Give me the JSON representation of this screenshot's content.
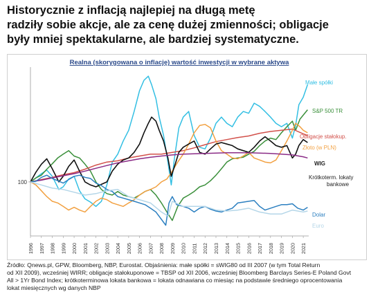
{
  "headline": {
    "line1": "Historycznie z inflacją najlepiej na długą metę",
    "line2": "radziły sobie akcje, ale za cenę dużej zmienności; obligacje",
    "line3": "były mniej spektakularne, ale bardziej systematyczne."
  },
  "footnote": {
    "line1": "Źródło: Qnews.pl, GPW, Bloomberg, NBP, Eurostat. Objaśnienia: małe spółki = sWIG80 od III 2007 (w tym Total Return",
    "line2": "od XII 2009), wcześniej WIRR; obligacje stałokuponowe = TBSP od XII 2006, wcześniej Bloomberg Barclays Series-E Poland Govt",
    "line3": "All > 1Yr Bond Index; krótkoterminowa lokata bankowa = lokata odnawiana co miesiąc na podstawie średniego oprocentowania",
    "line4": "lokat miesięcznych wg danych NBP"
  },
  "chart_data": {
    "type": "line",
    "title": "Realna (skorygowana o inflację) wartość inwestycji w wybrane aktywa",
    "xlabel": "",
    "ylabel": "",
    "y_scale": "log",
    "y_ticks": [
      100
    ],
    "ylim": [
      40,
      700
    ],
    "xlim": [
      1996,
      2021.5
    ],
    "x_ticks": [
      "1996",
      "1997",
      "1998",
      "1999",
      "2000",
      "2001",
      "2002",
      "2003",
      "2004",
      "2005",
      "2006",
      "2007",
      "2008",
      "2009",
      "2010",
      "2011",
      "2012",
      "2013",
      "2014",
      "2015",
      "2016",
      "2017",
      "2018",
      "2019",
      "2020",
      "2021"
    ],
    "grid": false,
    "legend": "labels at line ends (right)",
    "series": [
      {
        "name": "Małe spółki",
        "color": "#33bfe3",
        "label_pos": [
          430,
          43
        ],
        "x": [
          1996,
          1996.5,
          1997,
          1997.5,
          1998,
          1998.6,
          1999,
          1999.5,
          2000,
          2000.5,
          2001,
          2001.5,
          2002,
          2002.5,
          2003,
          2003.5,
          2004,
          2004.5,
          2005,
          2005.5,
          2006,
          2006.4,
          2006.8,
          2007.1,
          2007.5,
          2007.8,
          2008.2,
          2008.6,
          2008.9,
          2009.2,
          2009.6,
          2010,
          2010.5,
          2011,
          2011.5,
          2012,
          2012.5,
          2013,
          2013.5,
          2014,
          2014.5,
          2015,
          2015.5,
          2016,
          2016.5,
          2017,
          2017.5,
          2018,
          2018.5,
          2019,
          2019.5,
          2020,
          2020.3,
          2020.6,
          2021,
          2021.4
        ],
        "y": [
          100,
          107,
          115,
          122,
          110,
          88,
          92,
          105,
          110,
          86,
          75,
          71,
          66,
          72,
          95,
          140,
          160,
          200,
          240,
          330,
          470,
          560,
          600,
          520,
          410,
          300,
          220,
          140,
          95,
          150,
          250,
          300,
          330,
          220,
          180,
          175,
          210,
          270,
          300,
          270,
          255,
          300,
          330,
          320,
          380,
          360,
          330,
          300,
          270,
          255,
          270,
          210,
          260,
          370,
          420,
          520
        ]
      },
      {
        "name": "S&P 500 TR",
        "color": "#3a8f3a",
        "label_pos": [
          440,
          84
        ],
        "x": [
          1996,
          1996.5,
          1997,
          1997.5,
          1998,
          1998.5,
          1999,
          1999.5,
          2000,
          2000.5,
          2001,
          2001.5,
          2002,
          2002.5,
          2003,
          2003.5,
          2004,
          2004.5,
          2005,
          2005.5,
          2006,
          2006.5,
          2007,
          2007.5,
          2008,
          2008.5,
          2009,
          2009.5,
          2010,
          2010.5,
          2011,
          2011.5,
          2012,
          2012.5,
          2013,
          2013.5,
          2014,
          2014.5,
          2015,
          2015.5,
          2016,
          2016.5,
          2017,
          2017.5,
          2018,
          2018.5,
          2019,
          2019.5,
          2020,
          2020.3,
          2020.7,
          2021,
          2021.4
        ],
        "y": [
          100,
          107,
          112,
          124,
          136,
          150,
          160,
          170,
          155,
          150,
          135,
          120,
          100,
          88,
          82,
          80,
          85,
          80,
          78,
          76,
          80,
          85,
          88,
          80,
          70,
          60,
          52,
          66,
          76,
          80,
          85,
          92,
          95,
          102,
          112,
          125,
          140,
          148,
          150,
          152,
          160,
          168,
          185,
          200,
          210,
          205,
          230,
          255,
          280,
          240,
          290,
          310,
          340
        ]
      },
      {
        "name": "Obligacje stałokup.",
        "color": "#d2504a",
        "label_pos": [
          422,
          121
        ],
        "x": [
          1996,
          1997,
          1998,
          1999,
          2000,
          2001,
          2002,
          2003,
          2004,
          2005,
          2006,
          2007,
          2008,
          2009,
          2010,
          2011,
          2012,
          2013,
          2014,
          2015,
          2016,
          2017,
          2018,
          2019,
          2020,
          2021,
          2021.4
        ],
        "y": [
          100,
          104,
          108,
          113,
          117,
          124,
          133,
          140,
          143,
          150,
          155,
          160,
          160,
          165,
          170,
          178,
          188,
          198,
          205,
          212,
          218,
          228,
          235,
          240,
          245,
          226,
          220
        ]
      },
      {
        "name": "Złoto (w PLN)",
        "color": "#f2a040",
        "label_pos": [
          426,
          137
        ],
        "x": [
          1996,
          1996.5,
          1997,
          1997.5,
          1998,
          1998.5,
          1999,
          1999.5,
          2000,
          2000.5,
          2001,
          2001.5,
          2002,
          2002.5,
          2003,
          2003.5,
          2004,
          2004.5,
          2005,
          2005.5,
          2006,
          2006.5,
          2007,
          2007.5,
          2008,
          2008.5,
          2009,
          2009.5,
          2010,
          2010.5,
          2011,
          2011.5,
          2012,
          2012.5,
          2013,
          2013.5,
          2014,
          2014.5,
          2015,
          2015.5,
          2016,
          2016.5,
          2017,
          2017.5,
          2018,
          2018.5,
          2019,
          2019.5,
          2020,
          2020.3,
          2020.7,
          2021,
          2021.4
        ],
        "y": [
          100,
          95,
          86,
          78,
          72,
          70,
          66,
          62,
          65,
          62,
          60,
          66,
          72,
          76,
          74,
          70,
          68,
          66,
          70,
          74,
          80,
          85,
          88,
          92,
          100,
          105,
          120,
          140,
          160,
          190,
          230,
          260,
          265,
          250,
          200,
          170,
          160,
          150,
          148,
          155,
          165,
          150,
          145,
          140,
          138,
          145,
          170,
          200,
          240,
          270,
          255,
          240,
          230
        ]
      },
      {
        "name": "WIG",
        "color": "#111111",
        "label_pos": [
          443,
          160
        ],
        "x": [
          1996,
          1996.5,
          1997,
          1997.5,
          1998,
          1998.6,
          1999,
          1999.5,
          2000,
          2000.5,
          2001,
          2001.5,
          2002,
          2002.5,
          2003,
          2003.5,
          2004,
          2004.5,
          2005,
          2005.5,
          2006,
          2006.4,
          2006.8,
          2007.1,
          2007.5,
          2007.8,
          2008.2,
          2008.6,
          2008.9,
          2009.2,
          2009.6,
          2010,
          2010.5,
          2011,
          2011.5,
          2012,
          2012.5,
          2013,
          2013.5,
          2014,
          2014.5,
          2015,
          2015.5,
          2016,
          2016.5,
          2017,
          2017.5,
          2018,
          2018.5,
          2019,
          2019.5,
          2020,
          2020.3,
          2020.6,
          2021,
          2021.4
        ],
        "y": [
          100,
          118,
          135,
          148,
          125,
          100,
          110,
          130,
          145,
          120,
          100,
          95,
          92,
          96,
          100,
          120,
          135,
          145,
          150,
          165,
          190,
          230,
          270,
          300,
          280,
          240,
          200,
          150,
          110,
          130,
          165,
          180,
          190,
          200,
          165,
          160,
          175,
          190,
          195,
          190,
          185,
          175,
          170,
          165,
          180,
          200,
          215,
          200,
          185,
          180,
          185,
          150,
          160,
          185,
          205,
          195
        ]
      },
      {
        "name": "Krótkoterm. lokaty bankowe",
        "color": "#8a2b86",
        "label_pos": [
          435,
          180
        ],
        "x": [
          1996,
          1997,
          1998,
          1999,
          2000,
          2001,
          2002,
          2003,
          2004,
          2005,
          2006,
          2007,
          2008,
          2009,
          2010,
          2011,
          2012,
          2013,
          2014,
          2015,
          2016,
          2017,
          2018,
          2019,
          2020,
          2021,
          2021.4
        ],
        "y": [
          100,
          103,
          107,
          111,
          115,
          120,
          126,
          132,
          138,
          143,
          148,
          152,
          155,
          158,
          160,
          161,
          162,
          163,
          164,
          164,
          164,
          163,
          162,
          160,
          158,
          153,
          150
        ]
      },
      {
        "name": "Dolar",
        "color": "#2b7fc0",
        "label_pos": [
          440,
          234
        ],
        "x": [
          1996,
          1996.5,
          1997,
          1997.5,
          1998,
          1998.5,
          1999,
          1999.5,
          2000,
          2000.5,
          2001,
          2001.5,
          2002,
          2002.5,
          2003,
          2003.5,
          2004,
          2004.5,
          2005,
          2005.5,
          2006,
          2006.5,
          2007,
          2007.5,
          2008,
          2008.4,
          2008.7,
          2009,
          2009.4,
          2010,
          2010.5,
          2011,
          2011.5,
          2012,
          2012.5,
          2013,
          2013.5,
          2014,
          2014.5,
          2015,
          2015.5,
          2016,
          2016.5,
          2017,
          2017.5,
          2018,
          2018.5,
          2019,
          2019.5,
          2020,
          2020.5,
          2021,
          2021.4
        ],
        "y": [
          100,
          101,
          108,
          112,
          106,
          102,
          98,
          104,
          110,
          112,
          108,
          106,
          98,
          94,
          88,
          85,
          78,
          76,
          74,
          72,
          70,
          68,
          64,
          60,
          53,
          48,
          70,
          78,
          68,
          66,
          64,
          60,
          64,
          66,
          63,
          61,
          60,
          62,
          64,
          70,
          71,
          72,
          73,
          66,
          62,
          64,
          66,
          68,
          68,
          69,
          64,
          62,
          65
        ]
      },
      {
        "name": "Euro",
        "color": "#b4d6e8",
        "label_pos": [
          440,
          250
        ],
        "x": [
          1996,
          1997,
          1998,
          1999,
          2000,
          2001,
          2002,
          2003,
          2004,
          2005,
          2006,
          2007,
          2008,
          2008.6,
          2009,
          2010,
          2011,
          2012,
          2013,
          2014,
          2015,
          2016,
          2017,
          2018,
          2019,
          2020,
          2021,
          2021.4
        ],
        "y": [
          100,
          95,
          90,
          88,
          84,
          80,
          82,
          86,
          88,
          78,
          74,
          70,
          60,
          56,
          72,
          66,
          66,
          66,
          62,
          61,
          62,
          64,
          60,
          58,
          58,
          62,
          60,
          61
        ]
      }
    ]
  }
}
